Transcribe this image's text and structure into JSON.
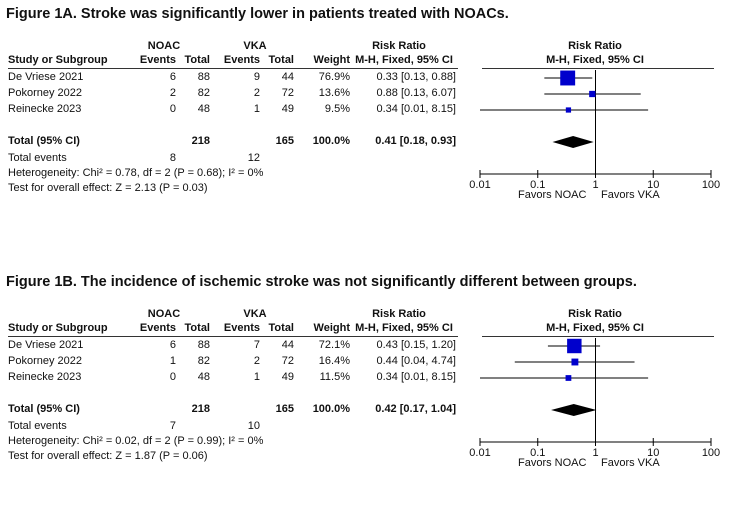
{
  "chart_data": [
    {
      "type": "forest",
      "title": "Figure 1A. Stroke was significantly lower in patients treated with NOACs.",
      "headers": {
        "group1": "NOAC",
        "group2": "VKA",
        "study": "Study or Subgroup",
        "events": "Events",
        "total": "Total",
        "weight": "Weight",
        "rr_title": "Risk Ratio",
        "rr_method": "M-H, Fixed, 95% CI"
      },
      "studies": [
        {
          "name": "De Vriese 2021",
          "e1": "6",
          "n1": "88",
          "e2": "9",
          "n2": "44",
          "weight_text": "76.9%",
          "ci_text": "0.33 [0.13, 0.88]",
          "weight": 76.9,
          "rr": 0.33,
          "lo": 0.13,
          "hi": 0.88
        },
        {
          "name": "Pokorney 2022",
          "e1": "2",
          "n1": "82",
          "e2": "2",
          "n2": "72",
          "weight_text": "13.6%",
          "ci_text": "0.88 [0.13, 6.07]",
          "weight": 13.6,
          "rr": 0.88,
          "lo": 0.13,
          "hi": 6.07
        },
        {
          "name": "Reinecke 2023",
          "e1": "0",
          "n1": "48",
          "e2": "1",
          "n2": "49",
          "weight_text": "9.5%",
          "ci_text": "0.34 [0.01, 8.15]",
          "weight": 9.5,
          "rr": 0.34,
          "lo": 0.01,
          "hi": 8.15
        }
      ],
      "total": {
        "label": "Total (95% CI)",
        "n1": "218",
        "n2": "165",
        "weight_text": "100.0%",
        "ci_text": "0.41 [0.18, 0.93]",
        "rr": 0.41,
        "lo": 0.18,
        "hi": 0.93
      },
      "total_events": {
        "label": "Total events",
        "e1": "8",
        "e2": "12"
      },
      "heterogeneity": "Heterogeneity: Chi² = 0.78, df = 2 (P = 0.68); I² = 0%",
      "overall_effect": "Test for overall effect: Z = 2.13 (P = 0.03)",
      "x_scale": "log",
      "xlim": [
        0.01,
        100
      ],
      "ticks": [
        0.01,
        0.1,
        1,
        10,
        100
      ],
      "tick_labels": [
        "0.01",
        "0.1",
        "1",
        "10",
        "100"
      ],
      "favors_left": "Favors NOAC",
      "favors_right": "Favors VKA"
    },
    {
      "type": "forest",
      "title": "Figure 1B. The incidence of ischemic stroke was not significantly different between groups.",
      "headers": {
        "group1": "NOAC",
        "group2": "VKA",
        "study": "Study or Subgroup",
        "events": "Events",
        "total": "Total",
        "weight": "Weight",
        "rr_title": "Risk Ratio",
        "rr_method": "M-H, Fixed, 95% CI"
      },
      "studies": [
        {
          "name": "De Vriese 2021",
          "e1": "6",
          "n1": "88",
          "e2": "7",
          "n2": "44",
          "weight_text": "72.1%",
          "ci_text": "0.43 [0.15, 1.20]",
          "weight": 72.1,
          "rr": 0.43,
          "lo": 0.15,
          "hi": 1.2
        },
        {
          "name": "Pokorney 2022",
          "e1": "1",
          "n1": "82",
          "e2": "2",
          "n2": "72",
          "weight_text": "16.4%",
          "ci_text": "0.44 [0.04, 4.74]",
          "weight": 16.4,
          "rr": 0.44,
          "lo": 0.04,
          "hi": 4.74
        },
        {
          "name": "Reinecke 2023",
          "e1": "0",
          "n1": "48",
          "e2": "1",
          "n2": "49",
          "weight_text": "11.5%",
          "ci_text": "0.34 [0.01, 8.15]",
          "weight": 11.5,
          "rr": 0.34,
          "lo": 0.01,
          "hi": 8.15
        }
      ],
      "total": {
        "label": "Total (95% CI)",
        "n1": "218",
        "n2": "165",
        "weight_text": "100.0%",
        "ci_text": "0.42 [0.17, 1.04]",
        "rr": 0.42,
        "lo": 0.17,
        "hi": 1.04
      },
      "total_events": {
        "label": "Total events",
        "e1": "7",
        "e2": "10"
      },
      "heterogeneity": "Heterogeneity: Chi² = 0.02, df = 2 (P = 0.99); I² = 0%",
      "overall_effect": "Test for overall effect: Z = 1.87 (P = 0.06)",
      "x_scale": "log",
      "xlim": [
        0.01,
        100
      ],
      "ticks": [
        0.01,
        0.1,
        1,
        10,
        100
      ],
      "tick_labels": [
        "0.01",
        "0.1",
        "1",
        "10",
        "100"
      ],
      "favors_left": "Favors NOAC",
      "favors_right": "Favors VKA"
    }
  ],
  "colors": {
    "marker": "#0000cc",
    "diamond": "#000000",
    "text": "#111111"
  }
}
